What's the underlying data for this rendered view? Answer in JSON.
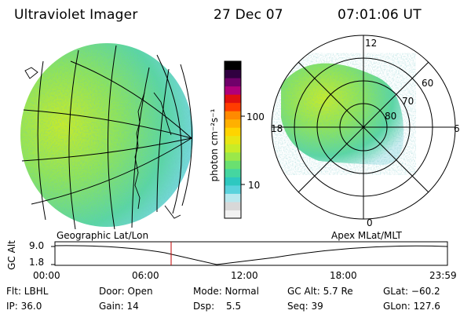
{
  "header": {
    "instrument": "Ultraviolet Imager",
    "date": "27 Dec 07",
    "time": "07:01:06 UT"
  },
  "colorbar": {
    "unit_label": "photon cm⁻²s⁻¹",
    "ticks": [
      "100",
      "10"
    ],
    "scale": "log",
    "colors": [
      "#f2f2f2",
      "#d8d8d8",
      "#b8e8ee",
      "#5ad2dc",
      "#2ec8c0",
      "#45d6a0",
      "#6ae070",
      "#9ae84a",
      "#c8ec28",
      "#e8e614",
      "#ffd400",
      "#ffb000",
      "#ff8a00",
      "#ff3c00",
      "#e01010",
      "#b0007a",
      "#70006a",
      "#300040",
      "#000000"
    ]
  },
  "geo_panel": {
    "title": "Geographic Lat/Lon"
  },
  "polar_panel": {
    "title": "Apex  MLat/MLT",
    "mlt_labels": {
      "top": "12",
      "left": "18",
      "right": "6",
      "bottom": "0"
    },
    "mlat_labels": [
      "60",
      "70",
      "80"
    ]
  },
  "altitude_plot": {
    "ylabel": "GC Alt",
    "y_ticks": [
      "9.0",
      "1.8"
    ],
    "x_ticks": [
      "00:00",
      "06:00",
      "12:00",
      "18:00",
      "23:59"
    ],
    "current_time_marker": "07:01"
  },
  "info": {
    "flt": "Flt: LBHL",
    "ip": "IP: 36.0",
    "door": "Door: Open",
    "gain": "Gain: 14",
    "mode": "Mode: Normal",
    "dsp": "Dsp:",
    "dsp_value": "5.5",
    "gc_alt": "GC Alt: 5.7 Re",
    "seq": "Seq: 39",
    "glat": "GLat: −60.2",
    "glon": "GLon: 127.6"
  }
}
